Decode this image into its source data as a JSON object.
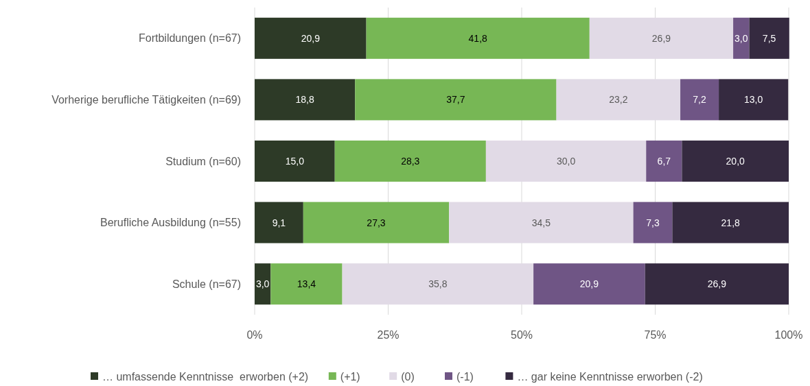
{
  "chart_data": {
    "type": "bar",
    "orientation": "horizontal",
    "stacked": true,
    "categories": [
      "Fortbildungen (n=67)",
      "Vorherige berufliche Tätigkeiten (n=69)",
      "Studium (n=60)",
      "Berufliche Ausbildung (n=55)",
      "Schule (n=67)"
    ],
    "series": [
      {
        "name": "… umfassende Kenntnisse  erworben (+2)",
        "color": "#2d3a27",
        "values": [
          20.9,
          18.8,
          15.0,
          9.1,
          3.0
        ],
        "value_labels": [
          "20,9",
          "18,8",
          "15,0",
          "9,1",
          "3,0"
        ]
      },
      {
        "name": "(+1)",
        "color": "#77b755",
        "values": [
          41.8,
          37.7,
          28.3,
          27.3,
          13.4
        ],
        "value_labels": [
          "41,8",
          "37,7",
          "28,3",
          "27,3",
          "13,4"
        ]
      },
      {
        "name": "(0)",
        "color": "#e1dae6",
        "values": [
          26.9,
          23.2,
          30.0,
          34.5,
          35.8
        ],
        "value_labels": [
          "26,9",
          "23,2",
          "30,0",
          "34,5",
          "35,8"
        ]
      },
      {
        "name": "(-1)",
        "color": "#6f5585",
        "values": [
          3.0,
          7.2,
          6.7,
          7.3,
          20.9
        ],
        "value_labels": [
          "3,0",
          "7,2",
          "6,7",
          "7,3",
          "20,9"
        ]
      },
      {
        "name": "… gar keine Kenntnisse erworben (-2)",
        "color": "#352a40",
        "values": [
          7.5,
          13.0,
          20.0,
          21.8,
          26.9
        ],
        "value_labels": [
          "7,5",
          "13,0",
          "20,0",
          "21,8",
          "26,9"
        ]
      }
    ],
    "xlim": [
      0,
      100
    ],
    "xticks": [
      {
        "value": 0,
        "label": "0%"
      },
      {
        "value": 25,
        "label": "25%"
      },
      {
        "value": 50,
        "label": "50%"
      },
      {
        "value": 75,
        "label": "75%"
      },
      {
        "value": 100,
        "label": "100%"
      }
    ],
    "grid": "x",
    "legend": "bottom"
  }
}
